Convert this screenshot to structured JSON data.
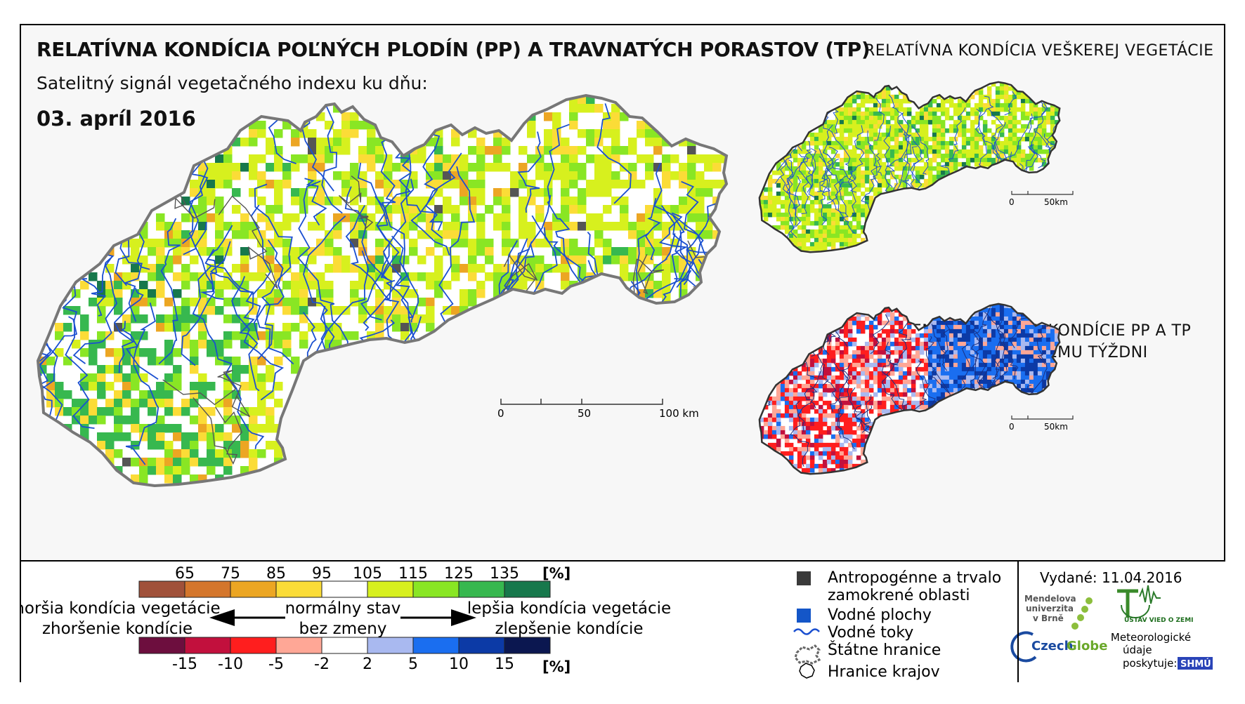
{
  "header": {
    "title": "RELATÍVNA KONDÍCIA POĽNÝCH PLODÍN (PP) A TRAVNATÝCH PORASTOV (TP)",
    "subtitle": "Satelitný signál vegetačného indexu ku dňu:",
    "date": "03. apríl 2016"
  },
  "insets": {
    "top_title": "RELATÍVNA KONDÍCIA VEŠKEREJ VEGETÁCIE",
    "bottom_title_line1": "ZMENA RELATÍVNEJ KONDÍCIE PP A TP",
    "bottom_title_line2": "OPROTI MINULÉMU TÝŽDNI",
    "scale_labels": [
      "0",
      "50km"
    ]
  },
  "main_scale": {
    "labels": [
      "0",
      "50",
      "100 km"
    ]
  },
  "legend": {
    "condition_unit": "[%]",
    "condition_ticks": [
      "65",
      "75",
      "85",
      "95",
      "105",
      "115",
      "125",
      "135"
    ],
    "condition_colors": [
      "#a0513a",
      "#d4762c",
      "#eca623",
      "#fbdc37",
      "#ffffff",
      "#d7f01e",
      "#89e624",
      "#37b84f",
      "#17784c"
    ],
    "change_unit": "[%]",
    "change_ticks": [
      "-15",
      "-10",
      "-5",
      "-2",
      "2",
      "5",
      "10",
      "15"
    ],
    "change_colors": [
      "#6d0e3e",
      "#c2103d",
      "#ff1e1e",
      "#ffa796",
      "#ffffff",
      "#a9b9f0",
      "#1a6ef0",
      "#0c3aa6",
      "#0b1750"
    ],
    "worse_line1": "horšia kondícia vegetácie",
    "worse_line2": "zhoršenie kondície",
    "normal_line1": "normálny stav",
    "normal_line2": "bez zmeny",
    "better_line1": "lepšia kondícia vegetácie",
    "better_line2": "zlepšenie kondície"
  },
  "symbols": [
    {
      "name": "anthropogenic",
      "label": "Antropogénne a trvalo",
      "label2": "zamokrené oblasti",
      "color": "#3a3a3a"
    },
    {
      "name": "water-bodies",
      "label": "Vodné plochy",
      "color": "#1456c8"
    },
    {
      "name": "rivers",
      "label": "Vodné toky",
      "color": "#1a4fd0"
    },
    {
      "name": "state-border",
      "label": "Štátne hranice"
    },
    {
      "name": "region-border",
      "label": "Hranice krajov"
    }
  ],
  "issued": "Vydané: 11.04.2016",
  "logos": {
    "mendel": [
      "Mendelova",
      "univerzita",
      "v Brně"
    ],
    "czechglobe_a": "Czech",
    "czechglobe_b": "Globe",
    "uvz": "ÚSTAV VIED O ZEMI",
    "meteo": [
      "Meteorologické",
      "údaje",
      "poskytuje:"
    ],
    "shmu": "SHMÚ"
  }
}
